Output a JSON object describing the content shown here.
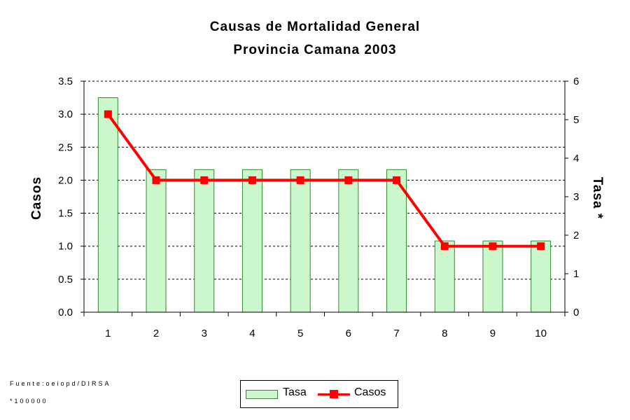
{
  "chart_data": {
    "type": "bar+line",
    "title": "Causas de Mortalidad General",
    "subtitle": "Provincia Camana 2003",
    "xlabel": "",
    "ylabel_left": "Casos",
    "ylabel_right": "Tasa *",
    "categories": [
      "1",
      "2",
      "3",
      "4",
      "5",
      "6",
      "7",
      "8",
      "9",
      "10"
    ],
    "ylim_left": [
      0,
      3.5
    ],
    "ylim_right": [
      0,
      6
    ],
    "yticks_left": [
      "0.0",
      "0.5",
      "1.0",
      "1.5",
      "2.0",
      "2.5",
      "3.0",
      "3.5"
    ],
    "yticks_right": [
      "0",
      "1",
      "2",
      "3",
      "4",
      "5",
      "6"
    ],
    "grid": true,
    "series": [
      {
        "name": "Tasa",
        "type": "bar",
        "axis": "left",
        "values": [
          3.25,
          2.16,
          2.16,
          2.16,
          2.16,
          2.16,
          2.16,
          1.08,
          1.08,
          1.08
        ]
      },
      {
        "name": "Casos",
        "type": "line",
        "axis": "left",
        "values": [
          3.0,
          2.0,
          2.0,
          2.0,
          2.0,
          2.0,
          2.0,
          1.0,
          1.0,
          1.0
        ]
      }
    ],
    "legend": [
      "Tasa",
      "Casos"
    ],
    "legend_position": "bottom-center",
    "colors": {
      "bar_fill": "#ccf7cc",
      "bar_stroke": "#2e8b2e",
      "line": "#ff0000",
      "marker": "#ff0000"
    }
  },
  "footnotes": {
    "source": "Fuente:oeiopd/DIRSA",
    "note": "*100000"
  }
}
